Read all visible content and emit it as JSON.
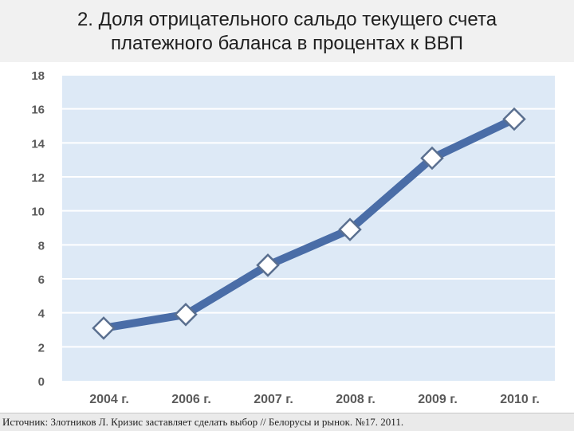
{
  "slide": {
    "title_line1": "2. Доля отрицательного сальдо текущего счета",
    "title_line2": "платежного баланса в процентах к ВВП",
    "source": "Источник: Злотников Л. Кризис заставляет сделать выбор // Белорусы и рынок. №17. 2011."
  },
  "chart_data": {
    "type": "line",
    "categories": [
      "2004 г.",
      "2006 г.",
      "2007 г.",
      "2008 г.",
      "2009 г.",
      "2010 г."
    ],
    "series": [
      {
        "values": [
          3.1,
          3.9,
          6.8,
          8.9,
          13.1,
          15.4
        ]
      }
    ],
    "y_ticks": [
      "0",
      "2",
      "4",
      "6",
      "8",
      "10",
      "12",
      "14",
      "16",
      "18"
    ],
    "ylim": [
      0,
      18
    ],
    "grid": true,
    "colors": {
      "plot_background": "#dde9f6",
      "gridline": "#ffffff",
      "line": "#4a6da7",
      "marker_fill": "#ffffff",
      "marker_stroke": "#5a6f8f",
      "tick_text": "#5a5a5a"
    }
  }
}
